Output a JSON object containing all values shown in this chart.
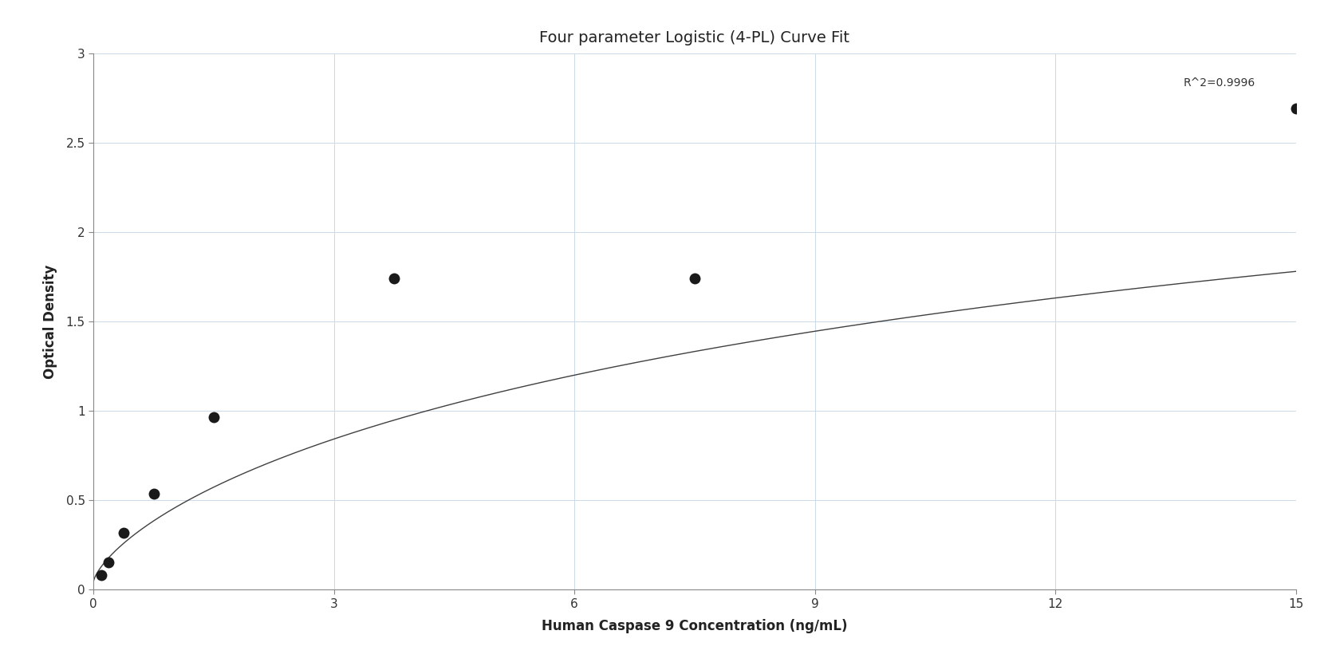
{
  "title": "Four parameter Logistic (4-PL) Curve Fit",
  "xlabel": "Human Caspase 9 Concentration (ng/mL)",
  "ylabel": "Optical Density",
  "r_squared_label": "R^2=0.9996",
  "data_x": [
    0.094,
    0.188,
    0.375,
    0.75,
    1.5,
    3.75,
    7.5,
    15.0
  ],
  "data_y": [
    0.083,
    0.152,
    0.317,
    0.535,
    0.965,
    1.743,
    1.743,
    2.693
  ],
  "xlim": [
    0,
    15
  ],
  "ylim": [
    0,
    3
  ],
  "xticks": [
    0,
    3,
    6,
    9,
    12,
    15
  ],
  "yticks": [
    0,
    0.5,
    1.0,
    1.5,
    2.0,
    2.5,
    3.0
  ],
  "background_color": "#ffffff",
  "grid_color": "#ccd9e8",
  "line_color": "#404040",
  "marker_color": "#1a1a1a",
  "title_fontsize": 14,
  "label_fontsize": 12,
  "tick_fontsize": 11,
  "annotation_fontsize": 10,
  "4pl_A": 0.045,
  "4pl_B": 0.72,
  "4pl_C": 18.5,
  "4pl_D": 3.8
}
